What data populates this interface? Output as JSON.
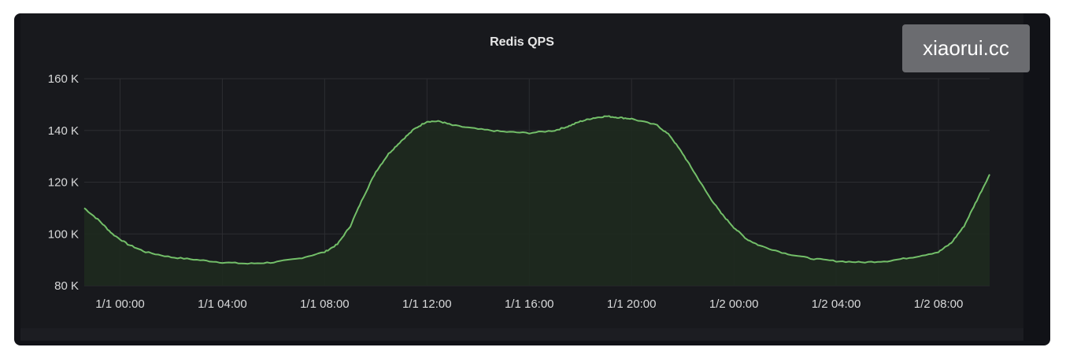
{
  "watermark": "xiaorui.cc",
  "colors": {
    "line": "#73bf69",
    "fill": "#1e2a1f",
    "grid": "#2c2d31",
    "background": "#18191d"
  },
  "chart_data": {
    "type": "area",
    "title": "Redis QPS",
    "xlabel": "",
    "ylabel": "",
    "x_unit": "hours since 1/1 00:00",
    "xlim": [
      -1.4,
      34
    ],
    "ylim": [
      80000,
      160000
    ],
    "y_ticks": [
      {
        "value": 80000,
        "label": "80 K"
      },
      {
        "value": 100000,
        "label": "100 K"
      },
      {
        "value": 120000,
        "label": "120 K"
      },
      {
        "value": 140000,
        "label": "140 K"
      },
      {
        "value": 160000,
        "label": "160 K"
      }
    ],
    "x_ticks": [
      {
        "value": 0,
        "label": "1/1 00:00"
      },
      {
        "value": 4,
        "label": "1/1 04:00"
      },
      {
        "value": 8,
        "label": "1/1 08:00"
      },
      {
        "value": 12,
        "label": "1/1 12:00"
      },
      {
        "value": 16,
        "label": "1/1 16:00"
      },
      {
        "value": 20,
        "label": "1/1 20:00"
      },
      {
        "value": 24,
        "label": "1/2 00:00"
      },
      {
        "value": 28,
        "label": "1/2 04:00"
      },
      {
        "value": 32,
        "label": "1/2 08:00"
      }
    ],
    "grid": true,
    "legend": "none",
    "series": [
      {
        "x": [
          -1.4,
          -0.8,
          -0.3,
          0.3,
          1,
          2,
          3,
          4,
          5,
          6,
          7,
          8,
          8.5,
          9,
          9.5,
          10,
          10.5,
          11,
          11.5,
          12,
          12.5,
          13,
          14,
          15,
          16,
          17,
          17.5,
          18,
          18.5,
          19,
          19.5,
          20,
          21,
          21.5,
          22,
          22.5,
          23,
          23.5,
          24,
          24.5,
          25,
          26,
          27,
          28,
          29,
          30,
          31,
          32,
          32.5,
          33,
          33.5,
          34
        ],
        "y": [
          110000,
          105000,
          100000,
          96000,
          93000,
          91000,
          90000,
          89000,
          88500,
          89000,
          90500,
          93000,
          96000,
          103000,
          114000,
          124000,
          131000,
          136000,
          140500,
          143500,
          143500,
          142000,
          140500,
          139500,
          139000,
          140000,
          141500,
          143500,
          144800,
          145500,
          145000,
          144500,
          142000,
          138000,
          131000,
          123000,
          115000,
          108000,
          102500,
          98000,
          95500,
          92500,
          90500,
          89500,
          89000,
          89500,
          91000,
          93000,
          96500,
          103000,
          113000,
          123000
        ]
      }
    ]
  }
}
